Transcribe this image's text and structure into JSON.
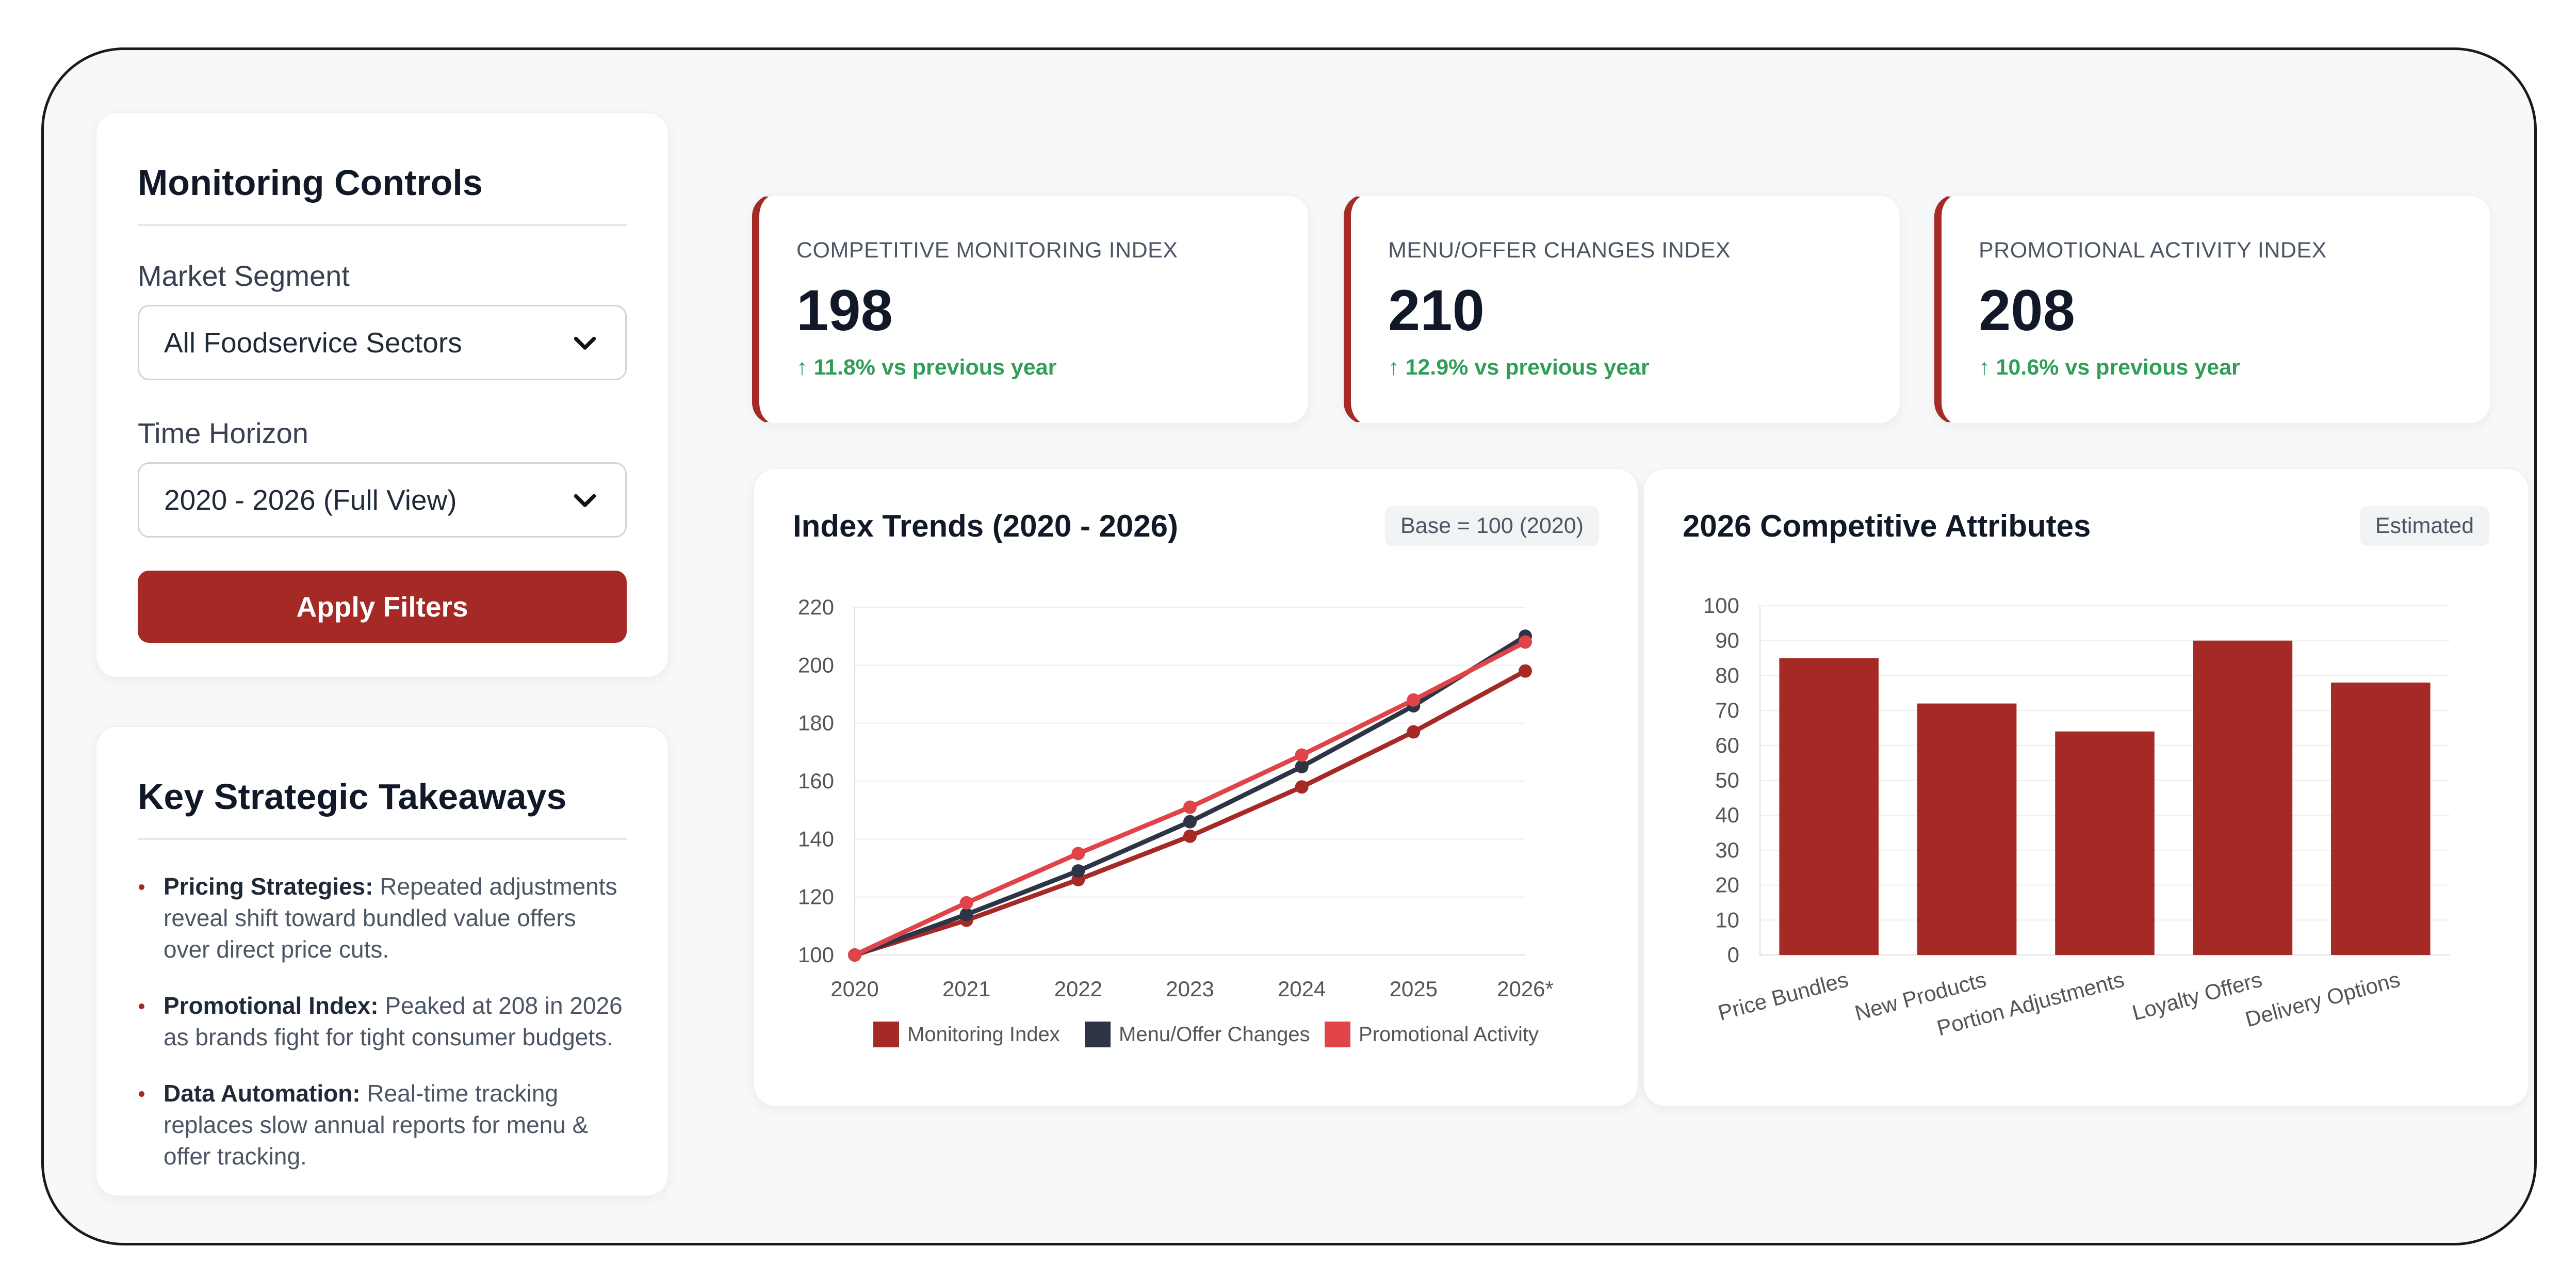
{
  "controls": {
    "title": "Monitoring Controls",
    "segment_label": "Market Segment",
    "segment_value": "All Foodservice Sectors",
    "horizon_label": "Time Horizon",
    "horizon_value": "2020 - 2026 (Full View)",
    "apply_label": "Apply Filters"
  },
  "takeaways": {
    "title": "Key Strategic Takeaways",
    "items": [
      {
        "head": "Pricing Strategies:",
        "text": " Repeated adjustments reveal shift toward bundled value offers over direct price cuts."
      },
      {
        "head": "Promotional Index:",
        "text": " Peaked at 208 in 2026 as brands fight for tight consumer budgets."
      },
      {
        "head": "Data Automation:",
        "text": " Real-time tracking replaces slow annual reports for menu & offer tracking."
      }
    ]
  },
  "kpis": [
    {
      "label": "Competitive Monitoring Index",
      "value": "198",
      "delta": "↑ 11.8% vs previous year"
    },
    {
      "label": "Menu/Offer Changes Index",
      "value": "210",
      "delta": "↑ 12.9% vs previous year"
    },
    {
      "label": "Promotional Activity Index",
      "value": "208",
      "delta": "↑ 10.6% vs previous year"
    }
  ],
  "line_chart": {
    "title": "Index Trends (2020 - 2026)",
    "badge": "Base = 100 (2020)"
  },
  "bar_chart": {
    "title": "2026 Competitive Attributes",
    "badge": "Estimated"
  },
  "colors": {
    "accent": "#a52a26",
    "series_dark": "#2d3446",
    "series_light": "#e04448",
    "positive": "#2f9e57"
  },
  "chart_data": [
    {
      "type": "line",
      "x": [
        "2020",
        "2021",
        "2022",
        "2023",
        "2024",
        "2025",
        "2026*"
      ],
      "ylim": [
        100,
        220
      ],
      "yticks": [
        100,
        120,
        140,
        160,
        180,
        200,
        220
      ],
      "legend": "bottom",
      "series": [
        {
          "name": "Monitoring Index",
          "color": "#a52a26",
          "values": [
            100,
            112,
            126,
            141,
            158,
            177,
            198
          ]
        },
        {
          "name": "Menu/Offer Changes",
          "color": "#2d3446",
          "values": [
            100,
            114,
            129,
            146,
            165,
            186,
            210
          ]
        },
        {
          "name": "Promotional Activity",
          "color": "#e04448",
          "values": [
            100,
            118,
            135,
            151,
            169,
            188,
            208
          ]
        }
      ]
    },
    {
      "type": "bar",
      "categories": [
        "Price Bundles",
        "New Products",
        "Portion Adjustments",
        "Loyalty Offers",
        "Delivery Options"
      ],
      "values": [
        85,
        72,
        64,
        90,
        78
      ],
      "ylim": [
        0,
        100
      ],
      "yticks": [
        0,
        10,
        20,
        30,
        40,
        50,
        60,
        70,
        80,
        90,
        100
      ],
      "color": "#a52a26"
    }
  ]
}
